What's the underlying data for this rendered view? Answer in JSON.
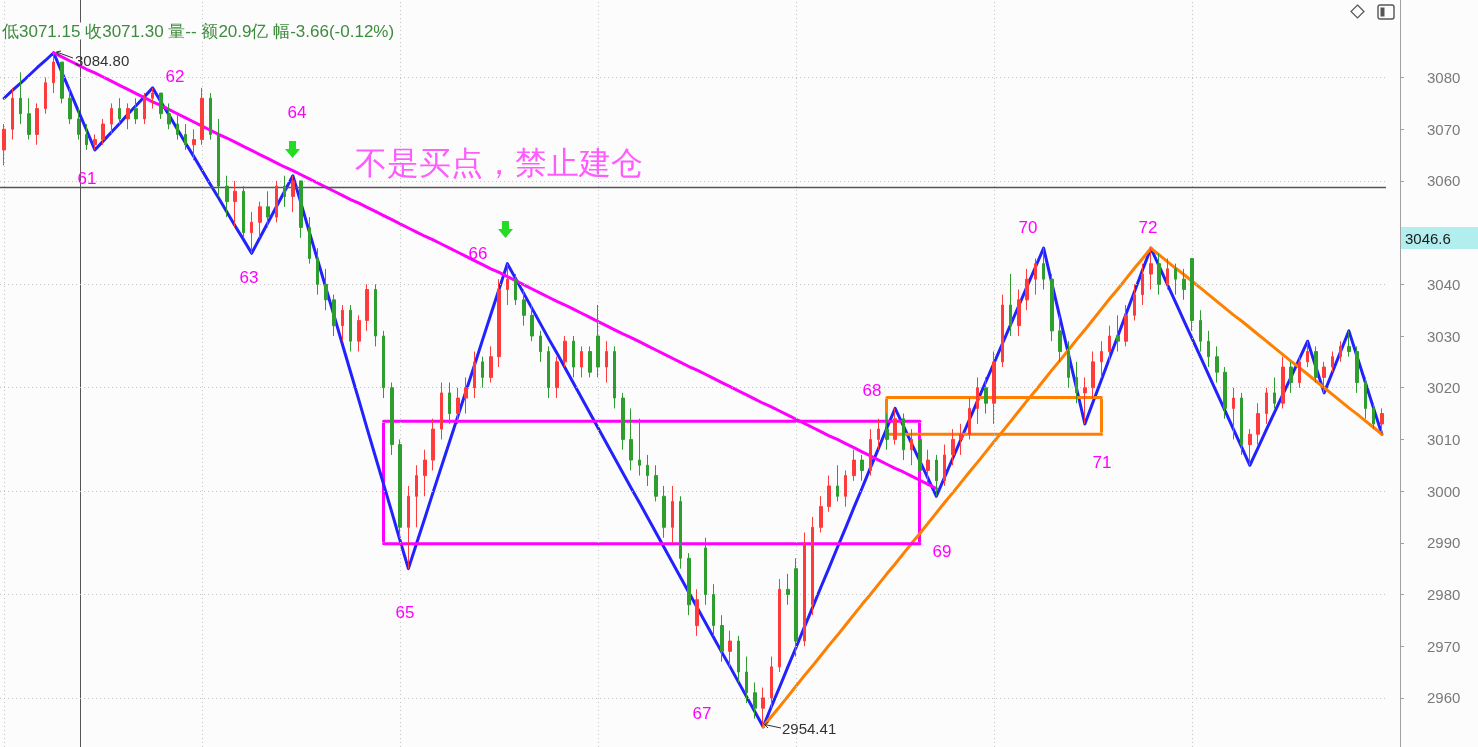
{
  "chart_data": {
    "type": "candlestick",
    "categories": [
      null,
      null,
      null,
      null,
      null,
      null,
      null,
      null,
      null,
      null,
      null,
      null,
      null,
      null,
      null,
      null,
      null,
      null,
      null,
      null,
      null,
      null,
      null,
      null,
      null,
      null,
      null,
      null,
      null,
      null,
      null,
      null,
      null,
      null,
      null,
      null,
      null,
      null,
      null,
      null,
      null,
      null,
      null,
      null,
      null,
      null,
      null,
      null,
      null,
      null,
      null,
      null,
      null,
      null,
      null,
      null,
      null,
      null,
      null,
      null,
      null,
      null,
      null,
      null,
      null,
      null,
      null,
      null,
      null,
      null,
      null,
      null,
      null,
      null,
      null,
      null,
      null,
      null,
      null,
      null,
      null,
      null,
      null,
      null,
      null,
      null,
      null,
      null,
      null,
      null,
      null,
      null,
      null,
      null,
      null,
      null,
      null,
      null,
      null,
      null,
      null,
      null,
      null,
      null,
      null,
      null,
      null,
      null,
      null,
      null,
      null,
      null,
      null,
      null,
      null,
      null,
      null,
      null,
      null,
      null,
      null,
      null,
      null,
      null,
      null,
      null,
      null,
      null,
      null,
      null,
      null,
      null,
      null,
      null,
      null,
      null,
      null,
      null,
      null,
      null,
      null,
      null,
      null,
      null,
      null,
      null,
      null,
      null,
      null,
      null,
      null,
      null,
      null,
      null,
      null,
      null,
      null,
      null,
      null,
      null,
      null,
      null,
      null,
      null,
      null,
      null,
      null,
      null
    ],
    "ohlc": [
      [
        3066,
        3071,
        3063,
        3070
      ],
      [
        3070,
        3078,
        3068,
        3076
      ],
      [
        3076,
        3081,
        3071,
        3073
      ],
      [
        3073,
        3076,
        3068,
        3069
      ],
      [
        3069,
        3075,
        3067,
        3074
      ],
      [
        3074,
        3080,
        3073,
        3079
      ],
      [
        3079,
        3084.8,
        3077,
        3083
      ],
      [
        3083,
        3083,
        3075,
        3076
      ],
      [
        3076,
        3078,
        3071,
        3072
      ],
      [
        3072,
        3074,
        3068,
        3069
      ],
      [
        3069,
        3071,
        3066,
        3067
      ],
      [
        3067,
        3069,
        3066,
        3068
      ],
      [
        3068,
        3072,
        3067,
        3071
      ],
      [
        3071,
        3075,
        3069,
        3074
      ],
      [
        3074,
        3076,
        3071,
        3072
      ],
      [
        3072,
        3075,
        3070,
        3074
      ],
      [
        3074,
        3076,
        3071,
        3072
      ],
      [
        3072,
        3077,
        3071,
        3076
      ],
      [
        3076,
        3078,
        3074,
        3077
      ],
      [
        3077,
        3077,
        3072,
        3073
      ],
      [
        3073,
        3075,
        3070,
        3071
      ],
      [
        3071,
        3073,
        3068,
        3069
      ],
      [
        3069,
        3071,
        3066,
        3067
      ],
      [
        3067,
        3070,
        3064,
        3068
      ],
      [
        3068,
        3078,
        3067,
        3076
      ],
      [
        3076,
        3077,
        3068,
        3069
      ],
      [
        3069,
        3072,
        3057,
        3059
      ],
      [
        3059,
        3061,
        3053,
        3056
      ],
      [
        3056,
        3060,
        3051,
        3058
      ],
      [
        3058,
        3059,
        3049,
        3050
      ],
      [
        3050,
        3054,
        3046,
        3052
      ],
      [
        3052,
        3056,
        3049,
        3055
      ],
      [
        3055,
        3058,
        3051,
        3053
      ],
      [
        3053,
        3060,
        3052,
        3059
      ],
      [
        3059,
        3061,
        3055,
        3057
      ],
      [
        3057,
        3061,
        3054,
        3060
      ],
      [
        3060,
        3060,
        3049,
        3051
      ],
      [
        3051,
        3053,
        3044,
        3045
      ],
      [
        3045,
        3047,
        3038,
        3040
      ],
      [
        3040,
        3043,
        3035,
        3037
      ],
      [
        3037,
        3038,
        3030,
        3032
      ],
      [
        3032,
        3036,
        3029,
        3035
      ],
      [
        3035,
        3036,
        3027,
        3029
      ],
      [
        3029,
        3034,
        3027,
        3033
      ],
      [
        3033,
        3040,
        3031,
        3039
      ],
      [
        3039,
        3040,
        3028,
        3030
      ],
      [
        3030,
        3031,
        3018,
        3020
      ],
      [
        3020,
        3021,
        3007,
        3009
      ],
      [
        3009,
        3010,
        2991,
        2993
      ],
      [
        2993,
        3001,
        2985,
        2999
      ],
      [
        2999,
        3005,
        2993,
        3003
      ],
      [
        3003,
        3008,
        2999,
        3006
      ],
      [
        3006,
        3014,
        3004,
        3012
      ],
      [
        3012,
        3021,
        3010,
        3019
      ],
      [
        3019,
        3021,
        3013,
        3015
      ],
      [
        3015,
        3020,
        3013,
        3018
      ],
      [
        3018,
        3022,
        3015,
        3020
      ],
      [
        3020,
        3027,
        3018,
        3025
      ],
      [
        3025,
        3026,
        3020,
        3022
      ],
      [
        3022,
        3028,
        3021,
        3026
      ],
      [
        3026,
        3041,
        3024,
        3039
      ],
      [
        3039,
        3044,
        3036,
        3041
      ],
      [
        3041,
        3042,
        3036,
        3037
      ],
      [
        3037,
        3039,
        3032,
        3034
      ],
      [
        3034,
        3036,
        3029,
        3030
      ],
      [
        3030,
        3031,
        3025,
        3027
      ],
      [
        3027,
        3028,
        3018,
        3020
      ],
      [
        3020,
        3026,
        3018,
        3025
      ],
      [
        3025,
        3030,
        3024,
        3029
      ],
      [
        3029,
        3030,
        3022,
        3024
      ],
      [
        3024,
        3028,
        3022,
        3027
      ],
      [
        3027,
        3028,
        3022,
        3023
      ],
      [
        3030,
        3036,
        3022,
        3024
      ],
      [
        3024,
        3029,
        3021,
        3027
      ],
      [
        3027,
        3028,
        3016,
        3018
      ],
      [
        3018,
        3019,
        3008,
        3010
      ],
      [
        3010,
        3016,
        3004,
        3006
      ],
      [
        3006,
        3014,
        3003,
        3005
      ],
      [
        3005,
        3007,
        3001,
        3003
      ],
      [
        3003,
        3005,
        2998,
        2999
      ],
      [
        2999,
        3001,
        2991,
        2993
      ],
      [
        2993,
        3001,
        2990,
        2998
      ],
      [
        2998,
        2999,
        2985,
        2987
      ],
      [
        2987,
        2988,
        2976,
        2978
      ],
      [
        2974,
        2981,
        2972,
        2979
      ],
      [
        2989,
        2991,
        2978,
        2980
      ],
      [
        2980,
        2982,
        2972,
        2974
      ],
      [
        2974,
        2976,
        2967,
        2969
      ],
      [
        2969,
        2973,
        2966,
        2971
      ],
      [
        2971,
        2972,
        2963,
        2965
      ],
      [
        2965,
        2968,
        2959,
        2961
      ],
      [
        2961,
        2963,
        2956,
        2958
      ],
      [
        2958,
        2962,
        2954.41,
        2960
      ],
      [
        2960,
        2968,
        2958,
        2966
      ],
      [
        2966,
        2983,
        2965,
        2981
      ],
      [
        2981,
        2984,
        2978,
        2980
      ],
      [
        2985,
        2987,
        2968,
        2971
      ],
      [
        2971,
        2992,
        2970,
        2990
      ],
      [
        2978,
        2995,
        2976,
        2993
      ],
      [
        2993,
        2999,
        2992,
        2997
      ],
      [
        2997,
        3003,
        2996,
        3001
      ],
      [
        3001,
        3005,
        2998,
        2999
      ],
      [
        2999,
        3004,
        2997,
        3003
      ],
      [
        3003,
        3008,
        3002,
        3006
      ],
      [
        3006,
        3007,
        3002,
        3004
      ],
      [
        3004,
        3012,
        3003,
        3010
      ],
      [
        3010,
        3014,
        3008,
        3012
      ],
      [
        3012,
        3015,
        3008,
        3010
      ],
      [
        3010,
        3016,
        3009,
        3014
      ],
      [
        3014,
        3015,
        3006,
        3008
      ],
      [
        3008,
        3012,
        3005,
        3010
      ],
      [
        3010,
        3011,
        3002,
        3004
      ],
      [
        3004,
        3008,
        3001,
        3006
      ],
      [
        3006,
        3007,
        2999,
        3002
      ],
      [
        3002,
        3009,
        3001,
        3007
      ],
      [
        3007,
        3012,
        3005,
        3010
      ],
      [
        3010,
        3013,
        3007,
        3011
      ],
      [
        3011,
        3018,
        3010,
        3016
      ],
      [
        3016,
        3022,
        3013,
        3020
      ],
      [
        3020,
        3022,
        3015,
        3017
      ],
      [
        3017,
        3027,
        3013,
        3025
      ],
      [
        3025,
        3038,
        3024,
        3036
      ],
      [
        3036,
        3042,
        3030,
        3032
      ],
      [
        3032,
        3039,
        3030,
        3037
      ],
      [
        3037,
        3043,
        3035,
        3041
      ],
      [
        3041,
        3045,
        3038,
        3044
      ],
      [
        3044,
        3047,
        3039,
        3041
      ],
      [
        3041,
        3042,
        3029,
        3031
      ],
      [
        3031,
        3034,
        3025,
        3027
      ],
      [
        3027,
        3029,
        3020,
        3022
      ],
      [
        3022,
        3025,
        3017,
        3019
      ],
      [
        3019,
        3022,
        3013,
        3020
      ],
      [
        3020,
        3027,
        3018,
        3025
      ],
      [
        3025,
        3029,
        3022,
        3027
      ],
      [
        3027,
        3032,
        3025,
        3030
      ],
      [
        3030,
        3034,
        3027,
        3029
      ],
      [
        3029,
        3036,
        3028,
        3034
      ],
      [
        3034,
        3040,
        3033,
        3038
      ],
      [
        3038,
        3044,
        3036,
        3042
      ],
      [
        3042,
        3047,
        3039,
        3044
      ],
      [
        3044,
        3046,
        3038,
        3040
      ],
      [
        3040,
        3045,
        3039,
        3043
      ],
      [
        3043,
        3044,
        3038,
        3041
      ],
      [
        3041,
        3043,
        3037,
        3039
      ],
      [
        3045,
        3045,
        3031,
        3033
      ],
      [
        3033,
        3035,
        3027,
        3029
      ],
      [
        3029,
        3031,
        3024,
        3026
      ],
      [
        3026,
        3028,
        3021,
        3023
      ],
      [
        3023,
        3024,
        3014,
        3016
      ],
      [
        3016,
        3020,
        3010,
        3018
      ],
      [
        3018,
        3019,
        3007,
        3009
      ],
      [
        3009,
        3012,
        3005,
        3011
      ],
      [
        3011,
        3017,
        3009,
        3015
      ],
      [
        3015,
        3020,
        3013,
        3019
      ],
      [
        3019,
        3022,
        3016,
        3017
      ],
      [
        3017,
        3026,
        3016,
        3024
      ],
      [
        3024,
        3025,
        3019,
        3021
      ],
      [
        3021,
        3026,
        3020,
        3025
      ],
      [
        3025,
        3029,
        3024,
        3027
      ],
      [
        3027,
        3028,
        3021,
        3022
      ],
      [
        3022,
        3025,
        3019,
        3024
      ],
      [
        3024,
        3027,
        3023,
        3026
      ],
      [
        3026,
        3029,
        3025,
        3028
      ],
      [
        3028,
        3031,
        3026,
        3027
      ],
      [
        3027,
        3028,
        3019,
        3021
      ],
      [
        3021,
        3022,
        3014,
        3016
      ],
      [
        3016,
        3017,
        3012,
        3013
      ],
      [
        3013,
        3016,
        3011,
        3015
      ]
    ],
    "series": [
      {
        "type": "line",
        "color": "#2222ff",
        "values": [
          3076,
          3077.5,
          3078.9,
          3080.4,
          3081.9,
          3083.3,
          3084.8,
          3081,
          3077.3,
          3073.5,
          3069.8,
          3066,
          3067.7,
          3069.4,
          3071.1,
          3072.9,
          3074.6,
          3076.3,
          3078,
          3075.3,
          3072.7,
          3070,
          3067.3,
          3064.7,
          3062,
          3059.3,
          3056.7,
          3054,
          3051.3,
          3048.7,
          3046,
          3049,
          3052,
          3055,
          3058,
          3061,
          3055.6,
          3050.1,
          3044.7,
          3039.3,
          3033.9,
          3028.4,
          3023,
          3017.6,
          3012.1,
          3006.7,
          3001.3,
          2995.9,
          2990.4,
          2985,
          2989.9,
          2994.8,
          2999.8,
          3004.7,
          3009.6,
          3014.5,
          3019.4,
          3024.3,
          3029.3,
          3034.2,
          3039.1,
          3044,
          3041.1,
          3038.2,
          3035.3,
          3032.4,
          3029.5,
          3026.7,
          3023.8,
          3020.9,
          3018,
          3015.1,
          3012.2,
          3009.3,
          3006.4,
          3003.5,
          3000.6,
          2997.8,
          2994.9,
          2992,
          2989.1,
          2986.2,
          2983.3,
          2980.4,
          2977.5,
          2974.6,
          2971.7,
          2968.8,
          2966,
          2963.1,
          2960.2,
          2957.3,
          2954.4,
          2958.3,
          2962.1,
          2966,
          2969.8,
          2973.7,
          2977.5,
          2981.4,
          2985.2,
          2989.1,
          2992.9,
          2996.8,
          3000.6,
          3004.5,
          3008.3,
          3012.2,
          3016,
          3012.6,
          3009.2,
          3005.8,
          3002.4,
          2999,
          3002.7,
          3006.4,
          3010.1,
          3013.8,
          3017.5,
          3021.2,
          3024.8,
          3028.5,
          3032.2,
          3035.9,
          3039.6,
          3043.3,
          3047,
          3040.2,
          3033.4,
          3026.6,
          3019.8,
          3013,
          3017.3,
          3021.5,
          3025.8,
          3030,
          3034.3,
          3038.5,
          3042.8,
          3047,
          3043.5,
          3040,
          3036.5,
          3033,
          3029.5,
          3026,
          3022.5,
          3019,
          3015.5,
          3012,
          3008.5,
          3005,
          3008.4,
          3011.9,
          3015.3,
          3018.7,
          3022.1,
          3025.6,
          3029,
          3024,
          3019,
          3023,
          3027,
          3031,
          3026,
          3021,
          3016,
          3011
        ]
      },
      {
        "type": "line",
        "color": "#ff00ff",
        "values": [
          null,
          null,
          null,
          null,
          null,
          null,
          3084.8,
          3084,
          3083.2,
          3082.4,
          3081.6,
          3080.9,
          3080.1,
          3079.3,
          3078.5,
          3077.7,
          3076.9,
          3076.1,
          3075.3,
          3074.6,
          3073.8,
          3073,
          3072.2,
          3071.4,
          3070.6,
          3069.8,
          3069,
          3068.3,
          3067.5,
          3066.7,
          3065.9,
          3065.1,
          3064.3,
          3063.5,
          3062.7,
          3062,
          3061.2,
          3060.4,
          3059.6,
          3058.8,
          3058,
          3057.2,
          3056.4,
          3055.7,
          3054.9,
          3054.1,
          3053.3,
          3052.5,
          3051.7,
          3050.9,
          3050.1,
          3049.3,
          3048.6,
          3047.8,
          3047,
          3046.2,
          3045.4,
          3044.6,
          3043.8,
          3043,
          3042.3,
          3041.5,
          3040.7,
          3039.9,
          3039.1,
          3038.3,
          3037.5,
          3036.7,
          3036,
          3035.2,
          3034.4,
          3033.6,
          3032.8,
          3032,
          3031.2,
          3030.4,
          3029.7,
          3028.9,
          3028.1,
          3027.3,
          3026.5,
          3025.7,
          3024.9,
          3024.1,
          3023.4,
          3022.6,
          3021.8,
          3021,
          3020.2,
          3019.4,
          3018.6,
          3017.8,
          3017,
          3016.3,
          3015.5,
          3014.7,
          3013.9,
          3013.1,
          3012.3,
          3011.5,
          3010.7,
          3010,
          3009.2,
          3008.4,
          3007.6,
          3006.8,
          3006,
          3005.2,
          3004.4,
          3003.7,
          3002.9,
          3002.1,
          3001.3,
          3000.5,
          null,
          null,
          null,
          null,
          null,
          null,
          null,
          null,
          null,
          null,
          null,
          null,
          null,
          null,
          null,
          null,
          null,
          null,
          null,
          null,
          null,
          null,
          null,
          null,
          null,
          null,
          null,
          null,
          null,
          null,
          null,
          null,
          null,
          null,
          null,
          null,
          null,
          null,
          null,
          null,
          null,
          null,
          null,
          null,
          null,
          null,
          null,
          null,
          null,
          null,
          null,
          null,
          null,
          null
        ]
      },
      {
        "type": "line",
        "color": "#ff8000",
        "values": [
          null,
          null,
          null,
          null,
          null,
          null,
          null,
          null,
          null,
          null,
          null,
          null,
          null,
          null,
          null,
          null,
          null,
          null,
          null,
          null,
          null,
          null,
          null,
          null,
          null,
          null,
          null,
          null,
          null,
          null,
          null,
          null,
          null,
          null,
          null,
          null,
          null,
          null,
          null,
          null,
          null,
          null,
          null,
          null,
          null,
          null,
          null,
          null,
          null,
          null,
          null,
          null,
          null,
          null,
          null,
          null,
          null,
          null,
          null,
          null,
          null,
          null,
          null,
          null,
          null,
          null,
          null,
          null,
          null,
          null,
          null,
          null,
          null,
          null,
          null,
          null,
          null,
          null,
          null,
          null,
          null,
          null,
          null,
          null,
          null,
          null,
          null,
          null,
          null,
          null,
          null,
          null,
          2954.4,
          2956.4,
          2958.3,
          2960.3,
          2962.3,
          2964.3,
          2966.2,
          2968.2,
          2970.2,
          2972.1,
          2974.1,
          2976.1,
          2978.1,
          2980,
          2982,
          2984,
          2985.9,
          2987.9,
          2989.9,
          2991.8,
          2993.8,
          2995.8,
          2997.8,
          2999.7,
          3001.7,
          3003.7,
          3005.6,
          3007.6,
          3009.6,
          3011.5,
          3013.5,
          3015.5,
          3017.5,
          3019.4,
          3021.4,
          3023.4,
          3025.3,
          3027.3,
          3029.3,
          3031.2,
          3033.2,
          3035.2,
          3037.2,
          3039.1,
          3041.1,
          3043.1,
          3045,
          3047,
          null,
          null,
          null,
          null,
          null,
          null,
          null,
          null,
          null,
          null,
          null,
          null,
          null,
          null,
          null,
          null,
          null,
          null,
          null,
          null,
          null,
          null,
          null,
          null,
          null,
          null,
          null,
          null
        ]
      },
      {
        "type": "line",
        "color": "#ff8000",
        "values": [
          null,
          null,
          null,
          null,
          null,
          null,
          null,
          null,
          null,
          null,
          null,
          null,
          null,
          null,
          null,
          null,
          null,
          null,
          null,
          null,
          null,
          null,
          null,
          null,
          null,
          null,
          null,
          null,
          null,
          null,
          null,
          null,
          null,
          null,
          null,
          null,
          null,
          null,
          null,
          null,
          null,
          null,
          null,
          null,
          null,
          null,
          null,
          null,
          null,
          null,
          null,
          null,
          null,
          null,
          null,
          null,
          null,
          null,
          null,
          null,
          null,
          null,
          null,
          null,
          null,
          null,
          null,
          null,
          null,
          null,
          null,
          null,
          null,
          null,
          null,
          null,
          null,
          null,
          null,
          null,
          null,
          null,
          null,
          null,
          null,
          null,
          null,
          null,
          null,
          null,
          null,
          null,
          null,
          null,
          null,
          null,
          null,
          null,
          null,
          null,
          null,
          null,
          null,
          null,
          null,
          null,
          null,
          null,
          null,
          null,
          null,
          null,
          null,
          null,
          null,
          null,
          null,
          null,
          null,
          null,
          null,
          null,
          null,
          null,
          null,
          null,
          null,
          null,
          null,
          null,
          null,
          null,
          null,
          null,
          null,
          null,
          null,
          null,
          null,
          3047,
          3045.7,
          3044.4,
          3043.1,
          3041.9,
          3040.6,
          3039.3,
          3038,
          3036.7,
          3035.4,
          3034.1,
          3032.9,
          3031.6,
          3030.3,
          3029,
          3027.7,
          3026.4,
          3025.1,
          3023.9,
          3022.6,
          3021.3,
          3020,
          3018.7,
          3017.4,
          3016.1,
          3014.9,
          3013.6,
          3012.3,
          3011
        ]
      },
      {
        "type": "line",
        "color": "#ff00ff",
        "values": [
          null,
          null,
          null,
          null,
          null,
          null,
          null,
          null,
          null,
          null,
          null,
          null,
          null,
          null,
          null,
          null,
          null,
          null,
          null,
          null,
          null,
          null,
          null,
          null,
          null,
          null,
          null,
          null,
          null,
          null,
          null,
          null,
          null,
          null,
          null,
          null,
          null,
          null,
          null,
          null,
          null,
          null,
          null,
          null,
          null,
          null,
          3013.5,
          3013.5,
          3013.5,
          3013.5,
          3013.5,
          3013.5,
          3013.5,
          3013.5,
          3013.5,
          3013.5,
          3013.5,
          3013.5,
          3013.5,
          3013.5,
          3013.5,
          3013.5,
          3013.5,
          3013.5,
          3013.5,
          3013.5,
          3013.5,
          3013.5,
          3013.5,
          3013.5,
          3013.5,
          3013.5,
          3013.5,
          3013.5,
          3013.5,
          3013.5,
          3013.5,
          3013.5,
          3013.5,
          3013.5,
          3013.5,
          3013.5,
          3013.5,
          3013.5,
          3013.5,
          3013.5,
          3013.5,
          3013.5,
          3013.5,
          3013.5,
          3013.5,
          3013.5,
          3013.5,
          3013.5,
          3013.5,
          3013.5,
          3013.5,
          3013.5,
          3013.5,
          3013.5,
          3013.5,
          3013.5,
          3013.5,
          3013.5,
          3013.5,
          3013.5,
          3013.5,
          3013.5,
          3013.5,
          3013.5,
          3013.5,
          3013.5,
          null,
          null,
          null,
          null,
          null,
          null,
          null,
          null,
          null,
          null,
          null,
          null,
          null,
          null,
          null,
          null,
          null,
          null,
          null,
          null,
          null,
          null,
          null,
          null,
          null,
          null,
          null,
          null,
          null,
          null,
          null,
          null,
          null,
          null,
          null,
          null,
          null,
          null,
          null,
          null,
          null,
          null,
          null,
          null,
          null,
          null,
          null,
          null,
          null,
          null,
          null,
          null,
          null,
          null,
          null,
          null
        ]
      },
      {
        "type": "line",
        "color": "#ff00ff",
        "values": [
          null,
          null,
          null,
          null,
          null,
          null,
          null,
          null,
          null,
          null,
          null,
          null,
          null,
          null,
          null,
          null,
          null,
          null,
          null,
          null,
          null,
          null,
          null,
          null,
          null,
          null,
          null,
          null,
          null,
          null,
          null,
          null,
          null,
          null,
          null,
          null,
          null,
          null,
          null,
          null,
          null,
          null,
          null,
          null,
          null,
          null,
          2989.8,
          2989.8,
          2989.8,
          2989.8,
          2989.8,
          2989.8,
          2989.8,
          2989.8,
          2989.8,
          2989.8,
          2989.8,
          2989.8,
          2989.8,
          2989.8,
          2989.8,
          2989.8,
          2989.8,
          2989.8,
          2989.8,
          2989.8,
          2989.8,
          2989.8,
          2989.8,
          2989.8,
          2989.8,
          2989.8,
          2989.8,
          2989.8,
          2989.8,
          2989.8,
          2989.8,
          2989.8,
          2989.8,
          2989.8,
          2989.8,
          2989.8,
          2989.8,
          2989.8,
          2989.8,
          2989.8,
          2989.8,
          2989.8,
          2989.8,
          2989.8,
          2989.8,
          2989.8,
          2989.8,
          2989.8,
          2989.8,
          2989.8,
          2989.8,
          2989.8,
          2989.8,
          2989.8,
          2989.8,
          2989.8,
          2989.8,
          2989.8,
          2989.8,
          2989.8,
          2989.8,
          2989.8,
          2989.8,
          2989.8,
          2989.8,
          2989.8,
          null,
          null,
          null,
          null,
          null,
          null,
          null,
          null,
          null,
          null,
          null,
          null,
          null,
          null,
          null,
          null,
          null,
          null,
          null,
          null,
          null,
          null,
          null,
          null,
          null,
          null,
          null,
          null,
          null,
          null,
          null,
          null,
          null,
          null,
          null,
          null,
          null,
          null,
          null,
          null,
          null,
          null,
          null,
          null,
          null,
          null,
          null,
          null,
          null,
          null,
          null,
          null,
          null,
          null,
          null,
          null
        ]
      },
      {
        "type": "line",
        "color": "#ff8000",
        "values": [
          null,
          null,
          null,
          null,
          null,
          null,
          null,
          null,
          null,
          null,
          null,
          null,
          null,
          null,
          null,
          null,
          null,
          null,
          null,
          null,
          null,
          null,
          null,
          null,
          null,
          null,
          null,
          null,
          null,
          null,
          null,
          null,
          null,
          null,
          null,
          null,
          null,
          null,
          null,
          null,
          null,
          null,
          null,
          null,
          null,
          null,
          null,
          null,
          null,
          null,
          null,
          null,
          null,
          null,
          null,
          null,
          null,
          null,
          null,
          null,
          null,
          null,
          null,
          null,
          null,
          null,
          null,
          null,
          null,
          null,
          null,
          null,
          null,
          null,
          null,
          null,
          null,
          null,
          null,
          null,
          null,
          null,
          null,
          null,
          null,
          null,
          null,
          null,
          null,
          null,
          null,
          null,
          null,
          null,
          null,
          null,
          null,
          null,
          null,
          null,
          null,
          null,
          null,
          null,
          null,
          null,
          null,
          3018.1,
          3018.1,
          3018.1,
          3018.1,
          3018.1,
          3018.1,
          3018.1,
          3018.1,
          3018.1,
          3018.1,
          3018.1,
          3018.1,
          3018.1,
          3018.1,
          3018.1,
          3018.1,
          3018.1,
          3018.1,
          3018.1,
          3018.1,
          3018.1,
          3018.1,
          3018.1,
          3018.1,
          3018.1,
          3018.1,
          3018.1,
          null,
          null,
          null,
          null,
          null,
          null,
          null,
          null,
          null,
          null,
          null,
          null,
          null,
          null,
          null,
          null,
          null,
          null,
          null,
          null,
          null,
          null,
          null,
          null,
          null,
          null,
          null,
          null,
          null,
          null,
          null,
          null,
          null,
          null
        ]
      },
      {
        "type": "line",
        "color": "#ff8000",
        "values": [
          null,
          null,
          null,
          null,
          null,
          null,
          null,
          null,
          null,
          null,
          null,
          null,
          null,
          null,
          null,
          null,
          null,
          null,
          null,
          null,
          null,
          null,
          null,
          null,
          null,
          null,
          null,
          null,
          null,
          null,
          null,
          null,
          null,
          null,
          null,
          null,
          null,
          null,
          null,
          null,
          null,
          null,
          null,
          null,
          null,
          null,
          null,
          null,
          null,
          null,
          null,
          null,
          null,
          null,
          null,
          null,
          null,
          null,
          null,
          null,
          null,
          null,
          null,
          null,
          null,
          null,
          null,
          null,
          null,
          null,
          null,
          null,
          null,
          null,
          null,
          null,
          null,
          null,
          null,
          null,
          null,
          null,
          null,
          null,
          null,
          null,
          null,
          null,
          null,
          null,
          null,
          null,
          null,
          null,
          null,
          null,
          null,
          null,
          null,
          null,
          null,
          null,
          null,
          null,
          null,
          null,
          null,
          3011,
          3011,
          3011,
          3011,
          3011,
          3011,
          3011,
          3011,
          3011,
          3011,
          3011,
          3011,
          3011,
          3011,
          3011,
          3011,
          3011,
          3011,
          3011,
          3011,
          3011,
          3011,
          3011,
          3011,
          3011,
          3011,
          3011,
          null,
          null,
          null,
          null,
          null,
          null,
          null,
          null,
          null,
          null,
          null,
          null,
          null,
          null,
          null,
          null,
          null,
          null,
          null,
          null,
          null,
          null,
          null,
          null,
          null,
          null,
          null,
          null,
          null,
          null,
          null,
          null,
          null,
          null
        ]
      }
    ],
    "ylim": [
      2950.5,
      3095
    ],
    "yticks": [
      2960,
      2970,
      2980,
      2990,
      3000,
      3010,
      3020,
      3030,
      3040,
      3060,
      3070,
      3080
    ],
    "grid": true,
    "tick_labels": "y",
    "ref_lines": [
      {
        "axis": "y",
        "value": 3058.8,
        "color": "#555555"
      }
    ],
    "annotations": [
      "低3071.15 收3071.30 量-- 额20.9亿 幅-3.66(-0.12%)",
      "不是买点，禁止建仓",
      "3046.6",
      "3084.80",
      "2954.41",
      "61",
      "62",
      "63",
      "64",
      "65",
      "66",
      "67",
      "68",
      "69",
      "70",
      "71",
      "72"
    ]
  }
}
